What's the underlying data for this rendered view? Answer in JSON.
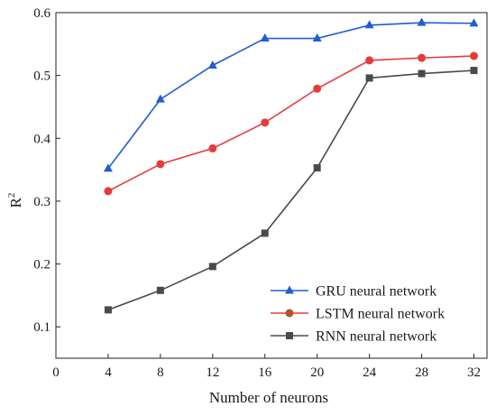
{
  "chart_data": {
    "type": "line",
    "xlabel": "Number of neurons",
    "ylabel_main": "R",
    "ylabel_sup": "2",
    "xlim": [
      0,
      33
    ],
    "ylim": [
      0.05,
      0.6
    ],
    "xticks": [
      0,
      4,
      8,
      12,
      16,
      20,
      24,
      28,
      32
    ],
    "xtick_labels": [
      "0",
      "4",
      "8",
      "12",
      "16",
      "20",
      "24",
      "28",
      "32"
    ],
    "yticks": [
      0.1,
      0.2,
      0.3,
      0.4,
      0.5,
      0.6
    ],
    "ytick_labels": [
      "0.1",
      "0.2",
      "0.3",
      "0.4",
      "0.5",
      "0.6"
    ],
    "x": [
      4,
      8,
      12,
      16,
      20,
      24,
      28,
      32
    ],
    "grid": false,
    "legend_position": "bottom-right",
    "series": [
      {
        "name": "GRU neural network",
        "color": "#1f5fcf",
        "marker": "triangle",
        "values": [
          0.352,
          0.462,
          0.516,
          0.559,
          0.559,
          0.58,
          0.584,
          0.583
        ]
      },
      {
        "name": "LSTM neural network",
        "color": "#e53b3b",
        "marker": "circle",
        "values": [
          0.316,
          0.359,
          0.384,
          0.425,
          0.479,
          0.524,
          0.528,
          0.531
        ]
      },
      {
        "name": "RNN neural network",
        "color": "#4a4a4a",
        "marker": "square",
        "values": [
          0.127,
          0.158,
          0.196,
          0.249,
          0.353,
          0.496,
          0.503,
          0.508
        ]
      }
    ]
  }
}
